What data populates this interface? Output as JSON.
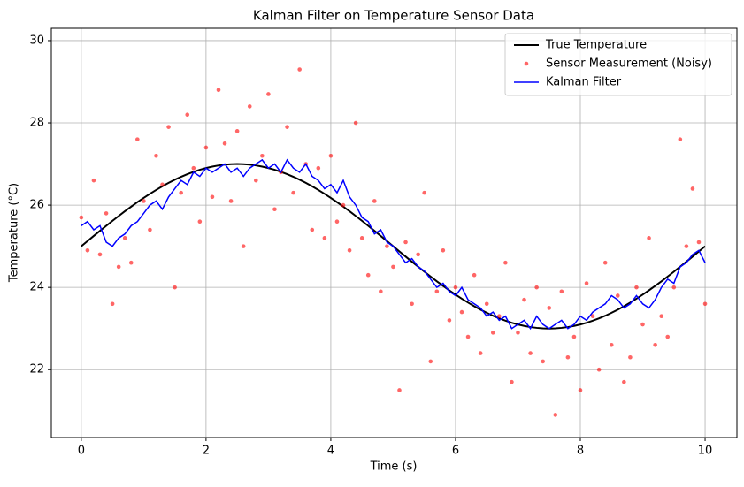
{
  "chart_data": {
    "type": "line",
    "title": "Kalman Filter on Temperature Sensor Data",
    "xlabel": "Time (s)",
    "ylabel": "Temperature (°C)",
    "x": [
      0,
      0.1,
      0.2,
      0.3,
      0.4,
      0.5,
      0.6,
      0.7,
      0.8,
      0.9,
      1,
      1.1,
      1.2,
      1.3,
      1.4,
      1.5,
      1.6,
      1.7,
      1.8,
      1.9,
      2,
      2.1,
      2.2,
      2.3,
      2.4,
      2.5,
      2.6,
      2.7,
      2.8,
      2.9,
      3,
      3.1,
      3.2,
      3.3,
      3.4,
      3.5,
      3.6,
      3.7,
      3.8,
      3.9,
      4,
      4.1,
      4.2,
      4.3,
      4.4,
      4.5,
      4.6,
      4.7,
      4.8,
      4.9,
      5,
      5.1,
      5.2,
      5.3,
      5.4,
      5.5,
      5.6,
      5.7,
      5.8,
      5.9,
      6,
      6.1,
      6.2,
      6.3,
      6.4,
      6.5,
      6.6,
      6.7,
      6.8,
      6.9,
      7,
      7.1,
      7.2,
      7.3,
      7.4,
      7.5,
      7.6,
      7.7,
      7.8,
      7.9,
      8,
      8.1,
      8.2,
      8.3,
      8.4,
      8.5,
      8.6,
      8.7,
      8.8,
      8.9,
      9,
      9.1,
      9.2,
      9.3,
      9.4,
      9.5,
      9.6,
      9.7,
      9.8,
      9.9,
      10
    ],
    "series": [
      {
        "name": "True Temperature",
        "color": "#000000",
        "style": "line",
        "values": [
          25,
          25.126,
          25.251,
          25.375,
          25.497,
          25.618,
          25.736,
          25.852,
          25.964,
          26.072,
          26.176,
          26.275,
          26.369,
          26.458,
          26.541,
          26.618,
          26.689,
          26.753,
          26.81,
          26.86,
          26.902,
          26.937,
          26.965,
          26.984,
          26.996,
          27,
          26.996,
          26.984,
          26.965,
          26.937,
          26.902,
          26.86,
          26.81,
          26.753,
          26.689,
          26.618,
          26.541,
          26.458,
          26.369,
          26.275,
          26.176,
          26.072,
          25.964,
          25.852,
          25.736,
          25.618,
          25.497,
          25.375,
          25.251,
          25.126,
          25,
          24.874,
          24.749,
          24.625,
          24.503,
          24.382,
          24.264,
          24.148,
          24.036,
          23.928,
          23.824,
          23.725,
          23.631,
          23.542,
          23.459,
          23.382,
          23.311,
          23.247,
          23.19,
          23.14,
          23.098,
          23.063,
          23.035,
          23.016,
          23.004,
          23,
          23.004,
          23.016,
          23.035,
          23.063,
          23.098,
          23.14,
          23.19,
          23.247,
          23.311,
          23.382,
          23.459,
          23.542,
          23.631,
          23.725,
          23.824,
          23.928,
          24.036,
          24.148,
          24.264,
          24.382,
          24.503,
          24.625,
          24.749,
          24.874,
          25
        ]
      },
      {
        "name": "Sensor Measurement (Noisy)",
        "color": "#ff0000",
        "style": "markers",
        "values": [
          25.7,
          24.9,
          26.6,
          24.8,
          25.8,
          23.6,
          24.5,
          25.2,
          24.6,
          27.6,
          26.1,
          25.4,
          27.2,
          26.5,
          27.9,
          24.0,
          26.3,
          28.2,
          26.9,
          25.6,
          27.4,
          26.2,
          28.8,
          27.5,
          26.1,
          27.8,
          25.0,
          28.4,
          26.6,
          27.2,
          28.7,
          25.9,
          26.8,
          27.9,
          26.3,
          29.3,
          27.0,
          25.4,
          26.9,
          25.2,
          27.2,
          25.6,
          26.0,
          24.9,
          28.0,
          25.2,
          24.3,
          26.1,
          23.9,
          25.0,
          24.5,
          21.5,
          25.1,
          23.6,
          24.8,
          26.3,
          22.2,
          23.9,
          24.9,
          23.2,
          24.0,
          23.4,
          22.8,
          24.3,
          22.4,
          23.6,
          22.9,
          23.3,
          24.6,
          21.7,
          22.9,
          23.7,
          22.4,
          24.0,
          22.2,
          23.5,
          20.9,
          23.9,
          22.3,
          22.8,
          21.5,
          24.1,
          23.3,
          22.0,
          24.6,
          22.6,
          23.8,
          21.7,
          22.3,
          24.0,
          23.1,
          25.2,
          22.6,
          23.3,
          22.8,
          24.0,
          27.6,
          25.0,
          26.4,
          25.1,
          23.6
        ]
      },
      {
        "name": "Kalman Filter",
        "color": "#0000ff",
        "style": "line",
        "values": [
          25.5,
          25.6,
          25.4,
          25.5,
          25.1,
          25.0,
          25.2,
          25.3,
          25.5,
          25.6,
          25.8,
          26.0,
          26.1,
          25.9,
          26.2,
          26.4,
          26.6,
          26.5,
          26.8,
          26.7,
          26.9,
          26.8,
          26.9,
          27.0,
          26.8,
          26.9,
          26.7,
          26.9,
          27.0,
          27.1,
          26.9,
          27.0,
          26.8,
          27.1,
          26.9,
          26.8,
          27.0,
          26.7,
          26.6,
          26.4,
          26.5,
          26.3,
          26.6,
          26.2,
          26.0,
          25.7,
          25.6,
          25.3,
          25.4,
          25.1,
          25.0,
          24.8,
          24.6,
          24.7,
          24.5,
          24.4,
          24.2,
          24.0,
          24.1,
          23.9,
          23.8,
          24.0,
          23.7,
          23.6,
          23.5,
          23.3,
          23.4,
          23.2,
          23.3,
          23.0,
          23.1,
          23.2,
          23.0,
          23.3,
          23.1,
          23.0,
          23.1,
          23.2,
          23.0,
          23.1,
          23.3,
          23.2,
          23.4,
          23.5,
          23.6,
          23.8,
          23.7,
          23.5,
          23.6,
          23.8,
          23.6,
          23.5,
          23.7,
          24.0,
          24.2,
          24.1,
          24.5,
          24.6,
          24.8,
          24.9,
          24.6
        ]
      }
    ],
    "xlim": [
      -0.48,
      10.51
    ],
    "ylim": [
      20.35,
      30.3
    ],
    "xticks": [
      0,
      2,
      4,
      6,
      8,
      10
    ],
    "yticks": [
      22,
      24,
      26,
      28,
      30
    ],
    "grid": true,
    "legend": "upper right"
  }
}
